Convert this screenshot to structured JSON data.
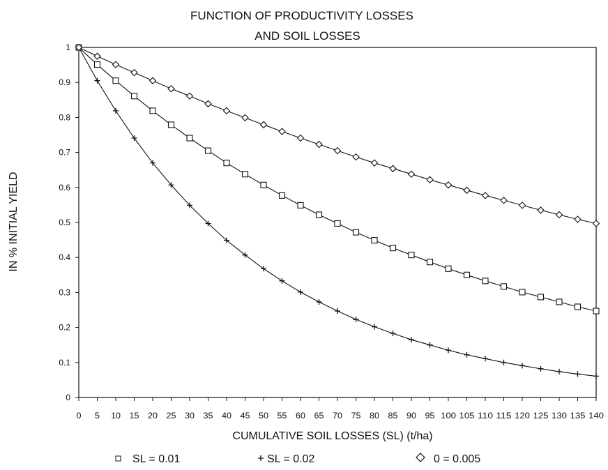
{
  "chart_data": {
    "type": "line",
    "title": [
      "FUNCTION OF PRODUCTIVITY LOSSES",
      "AND SOIL LOSSES"
    ],
    "xlabel": "CUMULATIVE SOIL LOSSES (SL) (t/ha)",
    "ylabel": "IN % INITIAL YIELD",
    "xlim": [
      0,
      140
    ],
    "ylim": [
      0,
      1
    ],
    "x_ticks": [
      "0",
      "5",
      "10",
      "15",
      "20",
      "25",
      "30",
      "35",
      "40",
      "45",
      "50",
      "55",
      "60",
      "65",
      "70",
      "75",
      "80",
      "85",
      "90",
      "95",
      "100",
      "105",
      "110",
      "115",
      "120",
      "125",
      "130",
      "135",
      "140"
    ],
    "y_ticks": [
      "0",
      "0.1",
      "0.2",
      "0.3",
      "0.4",
      "0.5",
      "0.6",
      "0.7",
      "0.8",
      "0.9",
      "1"
    ],
    "x": [
      0,
      5,
      10,
      15,
      20,
      25,
      30,
      35,
      40,
      45,
      50,
      55,
      60,
      65,
      70,
      75,
      80,
      85,
      90,
      95,
      100,
      105,
      110,
      115,
      120,
      125,
      130,
      135,
      140
    ],
    "grid": false,
    "legend_position": "bottom",
    "series": [
      {
        "name": "SL = 0.01",
        "legend_label": "SL = 0.01",
        "marker": "square",
        "values": [
          1.0,
          0.951,
          0.905,
          0.861,
          0.819,
          0.779,
          0.741,
          0.705,
          0.67,
          0.638,
          0.607,
          0.577,
          0.549,
          0.522,
          0.497,
          0.472,
          0.449,
          0.427,
          0.407,
          0.387,
          0.368,
          0.35,
          0.333,
          0.317,
          0.301,
          0.287,
          0.273,
          0.259,
          0.247
        ]
      },
      {
        "name": "SL = 0.02",
        "legend_label": "SL = 0.02",
        "marker": "plus",
        "values": [
          1.0,
          0.905,
          0.819,
          0.741,
          0.67,
          0.607,
          0.549,
          0.497,
          0.449,
          0.407,
          0.368,
          0.333,
          0.301,
          0.273,
          0.247,
          0.223,
          0.202,
          0.183,
          0.165,
          0.15,
          0.135,
          0.122,
          0.111,
          0.1,
          0.091,
          0.082,
          0.074,
          0.067,
          0.061
        ]
      },
      {
        "name": "0 = 0.005",
        "legend_label": "0 = 0.005",
        "marker": "diamond",
        "values": [
          1.0,
          0.975,
          0.951,
          0.928,
          0.905,
          0.882,
          0.861,
          0.839,
          0.819,
          0.799,
          0.779,
          0.76,
          0.741,
          0.723,
          0.705,
          0.687,
          0.67,
          0.654,
          0.638,
          0.622,
          0.607,
          0.592,
          0.577,
          0.563,
          0.549,
          0.535,
          0.522,
          0.509,
          0.497
        ]
      }
    ]
  }
}
